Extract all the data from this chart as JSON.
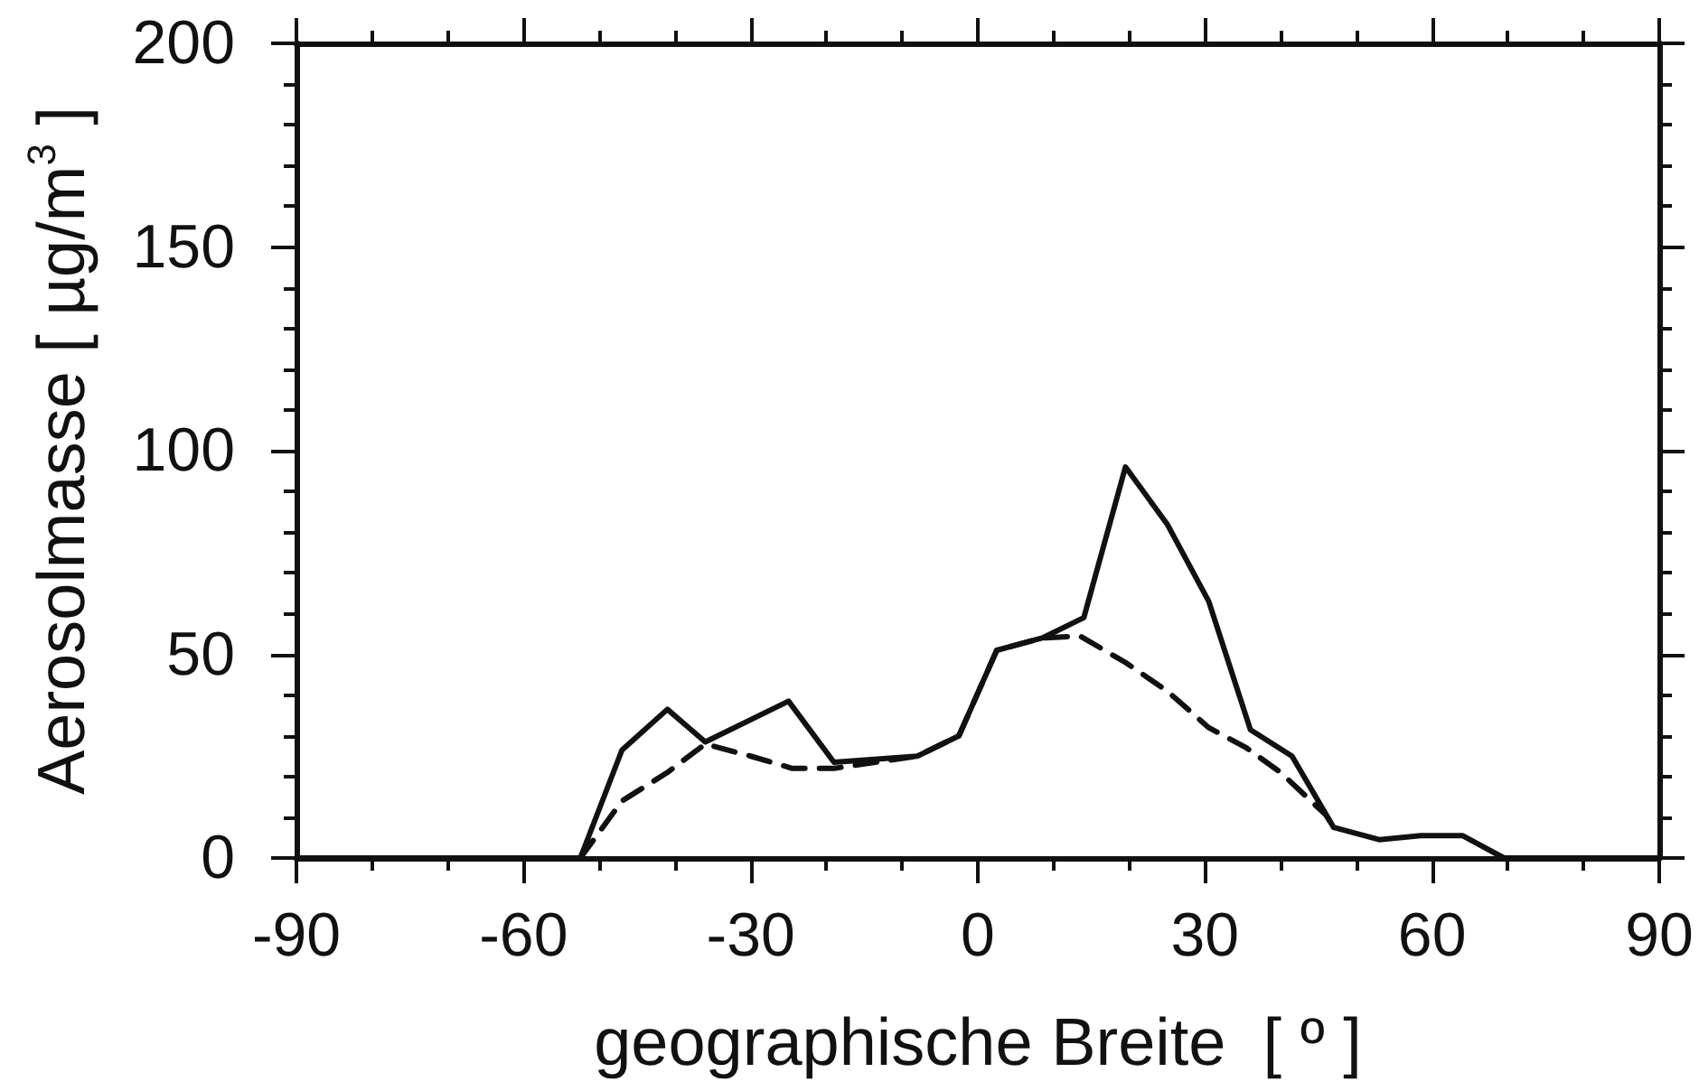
{
  "chart_data": {
    "type": "line",
    "xlabel": "geographische Breite  [ º ]",
    "ylabel": "Aerosolmasse [ µg/m$^{3}$ ]",
    "xlim": [
      -90,
      90
    ],
    "xticks": [
      -90,
      -60,
      -30,
      0,
      30,
      60,
      90
    ],
    "ylim": [
      0,
      200
    ],
    "yticks": [
      0,
      50,
      100,
      150,
      200
    ],
    "marker": "none",
    "series": [
      {
        "color": "#111111",
        "line_style": "solid",
        "x": [
          -90,
          -52.5,
          -47,
          -41,
          -36,
          -25,
          -19,
          -8,
          -2.5,
          2.5,
          8.5,
          14,
          19.5,
          25,
          30.5,
          36,
          41.5,
          47,
          53,
          58.5,
          64,
          69.5,
          90
        ],
        "values": [
          0,
          0,
          26.5,
          36.5,
          28.5,
          38.5,
          23.5,
          25,
          30,
          51,
          54,
          59,
          96,
          82,
          63,
          31.5,
          25,
          7.5,
          4.5,
          5.5,
          5.5,
          0,
          0
        ]
      },
      {
        "color": "#111111",
        "line_style": "dashed",
        "x": [
          -52.5,
          -47,
          -41,
          -36,
          -30,
          -24.5,
          -19,
          -8,
          -2.5,
          2.5,
          8.5,
          13.5,
          19.5,
          25,
          30.5,
          35.5,
          40,
          46,
          47
        ],
        "values": [
          0,
          14,
          21,
          28,
          25,
          22,
          22,
          25,
          30,
          51,
          54,
          54.5,
          48,
          41,
          32,
          27,
          21,
          10.5,
          7.5
        ]
      }
    ]
  }
}
